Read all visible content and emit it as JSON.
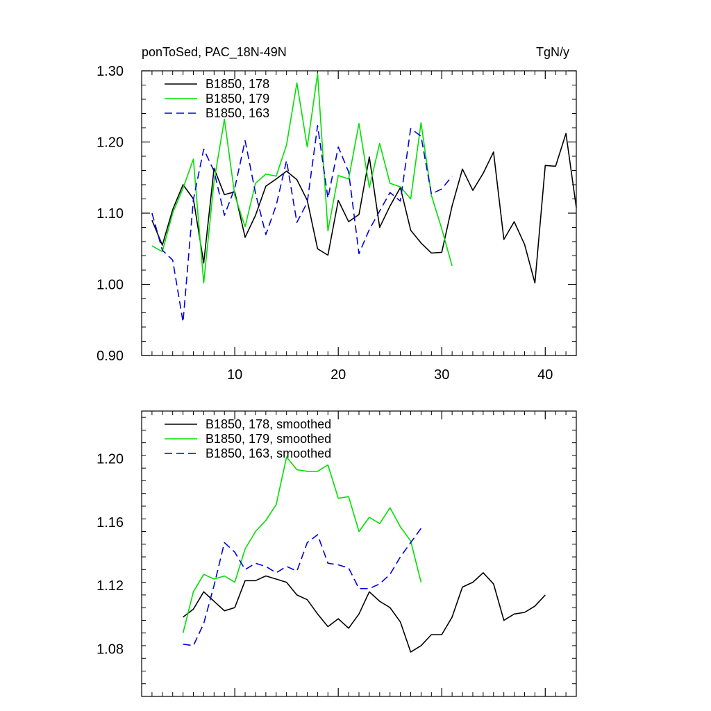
{
  "header": {
    "left_title": "ponToSed, PAC_18N-49N",
    "right_title": "TgN/y"
  },
  "chart_data": [
    {
      "type": "line",
      "title": "ponToSed, PAC_18N-49N",
      "units": "TgN/y",
      "xlim": [
        1,
        43
      ],
      "ylim": [
        0.9,
        1.3
      ],
      "xticks": [
        10,
        20,
        30,
        40
      ],
      "xtick_labels": [
        "10",
        "20",
        "30",
        "40"
      ],
      "yticks": [
        0.9,
        1.0,
        1.1,
        1.2,
        1.3
      ],
      "ytick_labels": [
        "0.90",
        "1.00",
        "1.10",
        "1.20",
        "1.30"
      ],
      "legend_position": "top-left",
      "series": [
        {
          "name": "B1850, 178",
          "color": "#000000",
          "dash": "solid",
          "x_start": 2,
          "values": [
            1.09,
            1.055,
            1.105,
            1.14,
            1.12,
            1.03,
            1.163,
            1.126,
            1.13,
            1.066,
            1.097,
            1.138,
            1.148,
            1.159,
            1.147,
            1.118,
            1.05,
            1.041,
            1.118,
            1.088,
            1.098,
            1.179,
            1.08,
            1.11,
            1.136,
            1.076,
            1.058,
            1.044,
            1.045,
            1.11,
            1.162,
            1.132,
            1.156,
            1.186,
            1.063,
            1.088,
            1.056,
            1.002,
            1.167,
            1.166,
            1.212,
            1.108
          ]
        },
        {
          "name": "B1850, 179",
          "color": "#00e000",
          "dash": "solid",
          "x_start": 2,
          "values": [
            1.054,
            1.046,
            1.1,
            1.135,
            1.176,
            1.002,
            1.145,
            1.232,
            1.125,
            1.081,
            1.142,
            1.155,
            1.152,
            1.196,
            1.283,
            1.193,
            1.296,
            1.075,
            1.153,
            1.148,
            1.226,
            1.136,
            1.198,
            1.142,
            1.137,
            1.12,
            1.227,
            1.125,
            1.078,
            1.026
          ]
        },
        {
          "name": "B1850, 163",
          "color": "#0000e0",
          "dash": "dashed",
          "x_start": 2,
          "values": [
            1.1,
            1.048,
            1.034,
            0.947,
            1.119,
            1.19,
            1.159,
            1.097,
            1.135,
            1.202,
            1.128,
            1.07,
            1.111,
            1.174,
            1.087,
            1.115,
            1.223,
            1.121,
            1.193,
            1.158,
            1.043,
            1.077,
            1.103,
            1.129,
            1.117,
            1.219,
            1.208,
            1.127,
            1.134,
            1.152
          ]
        }
      ]
    },
    {
      "type": "line",
      "title": "",
      "xlim": [
        1,
        43
      ],
      "ylim": [
        1.05,
        1.23
      ],
      "xticks": [
        10,
        20,
        30,
        40
      ],
      "xtick_labels": [
        "",
        "",
        "",
        ""
      ],
      "yticks": [
        1.08,
        1.12,
        1.16,
        1.2
      ],
      "ytick_labels": [
        "1.08",
        "1.12",
        "1.16",
        "1.20"
      ],
      "legend_position": "top-left",
      "series": [
        {
          "name": "B1850, 178, smoothed",
          "color": "#000000",
          "dash": "solid",
          "x_start": 5,
          "values": [
            1.1,
            1.105,
            1.116,
            1.11,
            1.104,
            1.106,
            1.123,
            1.123,
            1.126,
            1.124,
            1.122,
            1.114,
            1.111,
            1.102,
            1.094,
            1.099,
            1.093,
            1.102,
            1.116,
            1.11,
            1.106,
            1.097,
            1.078,
            1.082,
            1.089,
            1.089,
            1.1,
            1.119,
            1.122,
            1.128,
            1.121,
            1.098,
            1.102,
            1.103,
            1.107,
            1.114
          ]
        },
        {
          "name": "B1850, 179, smoothed",
          "color": "#00e000",
          "dash": "solid",
          "x_start": 5,
          "values": [
            1.09,
            1.116,
            1.127,
            1.124,
            1.126,
            1.122,
            1.143,
            1.154,
            1.161,
            1.171,
            1.201,
            1.193,
            1.192,
            1.192,
            1.196,
            1.175,
            1.176,
            1.154,
            1.163,
            1.159,
            1.169,
            1.157,
            1.148,
            1.122
          ]
        },
        {
          "name": "B1850, 163, smoothed",
          "color": "#0000e0",
          "dash": "dashed",
          "x_start": 5,
          "values": [
            1.083,
            1.082,
            1.096,
            1.12,
            1.147,
            1.141,
            1.13,
            1.134,
            1.132,
            1.128,
            1.132,
            1.129,
            1.147,
            1.152,
            1.134,
            1.133,
            1.131,
            1.118,
            1.118,
            1.121,
            1.127,
            1.138,
            1.147,
            1.156
          ]
        }
      ]
    }
  ]
}
